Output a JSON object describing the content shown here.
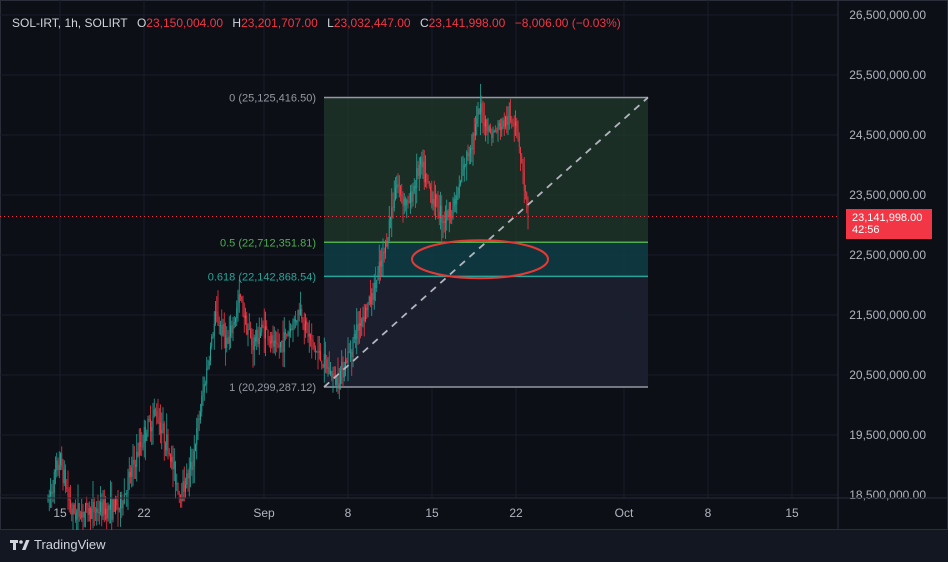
{
  "header": {
    "symbol": "SOL-IRT, 1h, SOLIRT",
    "open_label": "O",
    "open": "23,150,004.00",
    "high_label": "H",
    "high": "23,201,707.00",
    "low_label": "L",
    "low": "23,032,447.00",
    "close_label": "C",
    "close": "23,141,998.00",
    "change": "−8,006.00 (−0.03%)"
  },
  "price_tag": {
    "price": "23,141,998.00",
    "countdown": "42:56"
  },
  "footer": {
    "brand": "TradingView"
  },
  "colors": {
    "up": "#26a69a",
    "down": "#f23645",
    "background": "#0c0f16"
  },
  "chart_data": {
    "type": "candlestick",
    "y_axis_ticks": [
      "26,500,000.00",
      "25,500,000.00",
      "24,500,000.00",
      "23,500,000.00",
      "22,500,000.00",
      "21,500,000.00",
      "20,500,000.00",
      "19,500,000.00",
      "18,500,000.00"
    ],
    "y_axis_tick_values": [
      26500000,
      25500000,
      24500000,
      23500000,
      22500000,
      21500000,
      20500000,
      19500000,
      18500000
    ],
    "x_axis_ticks": [
      {
        "label": "15",
        "date": "2024-08-15"
      },
      {
        "label": "22",
        "date": "2024-08-22"
      },
      {
        "label": "Sep",
        "date": "2024-09-01"
      },
      {
        "label": "8",
        "date": "2024-09-08"
      },
      {
        "label": "15",
        "date": "2024-09-15"
      },
      {
        "label": "22",
        "date": "2024-09-22"
      },
      {
        "label": "Oct",
        "date": "2024-10-01"
      },
      {
        "label": "8",
        "date": "2024-10-08"
      },
      {
        "label": "15",
        "date": "2024-10-15"
      }
    ],
    "last_price": 23141998,
    "fibonacci": {
      "levels": [
        {
          "ratio": "0",
          "label": "0 (25,125,416.50)",
          "price": 25125416.5
        },
        {
          "ratio": "0.5",
          "label": "0.5 (22,712,351.81)",
          "price": 22712351.81
        },
        {
          "ratio": "0.618",
          "label": "0.618 (22,142,868.54)",
          "price": 22142868.54
        },
        {
          "ratio": "1",
          "label": "1 (20,299,287.12)",
          "price": 20299287.12
        }
      ],
      "start_date": "2024-09-06",
      "end_date": "2024-10-03"
    },
    "highlight_ellipse": {
      "date": "2024-09-19",
      "price": 22430000
    },
    "price_path": [
      {
        "date": "2024-08-14",
        "price": 18400000
      },
      {
        "date": "2024-08-15",
        "price": 19100000
      },
      {
        "date": "2024-08-16",
        "price": 18200000
      },
      {
        "date": "2024-08-20",
        "price": 18300000
      },
      {
        "date": "2024-08-21",
        "price": 18900000
      },
      {
        "date": "2024-08-22",
        "price": 19500000
      },
      {
        "date": "2024-08-23",
        "price": 19900000
      },
      {
        "date": "2024-08-24",
        "price": 19300000
      },
      {
        "date": "2024-08-25",
        "price": 18500000
      },
      {
        "date": "2024-08-26",
        "price": 19000000
      },
      {
        "date": "2024-08-27",
        "price": 20300000
      },
      {
        "date": "2024-08-28",
        "price": 21500000
      },
      {
        "date": "2024-08-29",
        "price": 21000000
      },
      {
        "date": "2024-08-30",
        "price": 21800000
      },
      {
        "date": "2024-08-31",
        "price": 21000000
      },
      {
        "date": "2024-09-01",
        "price": 21300000
      },
      {
        "date": "2024-09-02",
        "price": 20900000
      },
      {
        "date": "2024-09-03",
        "price": 21200000
      },
      {
        "date": "2024-09-04",
        "price": 21600000
      },
      {
        "date": "2024-09-05",
        "price": 21000000
      },
      {
        "date": "2024-09-06",
        "price": 20700000
      },
      {
        "date": "2024-09-07",
        "price": 20400000
      },
      {
        "date": "2024-09-08",
        "price": 20800000
      },
      {
        "date": "2024-09-09",
        "price": 21400000
      },
      {
        "date": "2024-09-10",
        "price": 21800000
      },
      {
        "date": "2024-09-11",
        "price": 22500000
      },
      {
        "date": "2024-09-12",
        "price": 23700000
      },
      {
        "date": "2024-09-13",
        "price": 23300000
      },
      {
        "date": "2024-09-14",
        "price": 24000000
      },
      {
        "date": "2024-09-15",
        "price": 23500000
      },
      {
        "date": "2024-09-16",
        "price": 23100000
      },
      {
        "date": "2024-09-17",
        "price": 23400000
      },
      {
        "date": "2024-09-18",
        "price": 24200000
      },
      {
        "date": "2024-09-19",
        "price": 24900000
      },
      {
        "date": "2024-09-20",
        "price": 24500000
      },
      {
        "date": "2024-09-21",
        "price": 24700000
      },
      {
        "date": "2024-09-22",
        "price": 24800000
      },
      {
        "date": "2024-09-23",
        "price": 23142000
      }
    ]
  }
}
